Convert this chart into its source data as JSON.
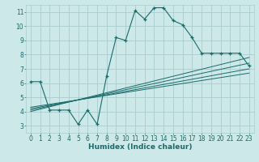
{
  "bg_color": "#cce8e8",
  "grid_color": "#aacccc",
  "line_color": "#1a6b6b",
  "marker_color": "#1a6b6b",
  "main_x": [
    0,
    1,
    2,
    3,
    4,
    5,
    6,
    7,
    8,
    9,
    10,
    11,
    12,
    13,
    14,
    15,
    16,
    17,
    18,
    19,
    20,
    21,
    22,
    23
  ],
  "main_y": [
    6.1,
    6.1,
    4.1,
    4.1,
    4.1,
    3.1,
    4.1,
    3.1,
    6.5,
    9.2,
    9.0,
    11.1,
    10.5,
    11.3,
    11.3,
    10.4,
    10.1,
    9.2,
    8.1,
    8.1,
    8.1,
    8.1,
    8.1,
    7.2
  ],
  "reg_lines": [
    {
      "x": [
        0,
        23
      ],
      "y": [
        4.0,
        7.8
      ]
    },
    {
      "x": [
        0,
        23
      ],
      "y": [
        4.1,
        7.4
      ]
    },
    {
      "x": [
        0,
        23
      ],
      "y": [
        4.2,
        7.0
      ]
    },
    {
      "x": [
        0,
        23
      ],
      "y": [
        4.3,
        6.7
      ]
    }
  ],
  "xlim": [
    -0.5,
    23.5
  ],
  "ylim": [
    2.5,
    11.5
  ],
  "xticks": [
    0,
    1,
    2,
    3,
    4,
    5,
    6,
    7,
    8,
    9,
    10,
    11,
    12,
    13,
    14,
    15,
    16,
    17,
    18,
    19,
    20,
    21,
    22,
    23
  ],
  "yticks": [
    3,
    4,
    5,
    6,
    7,
    8,
    9,
    10,
    11
  ],
  "xlabel": "Humidex (Indice chaleur)",
  "xlabel_fontsize": 6.5,
  "tick_fontsize": 5.5
}
